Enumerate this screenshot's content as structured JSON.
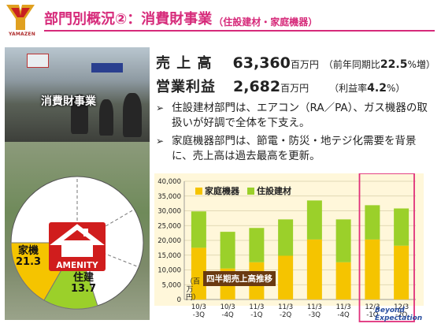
{
  "header": {
    "logo_text": "YAMAZEN",
    "title": "部門別概況②：消費財事業",
    "title_sub": "（住設建材・家庭機器）"
  },
  "photo": {
    "caption": "消費財事業"
  },
  "pie": {
    "center_label": "AMENITY",
    "segments": [
      {
        "label": "家機",
        "value": "21.3"
      },
      {
        "label": "住建",
        "value": "13.7"
      }
    ]
  },
  "kpi": {
    "sales_label": "売 上 高",
    "sales_value": "63,360",
    "sales_unit": "百万円",
    "sales_note_pre": "（前年同期比",
    "sales_note_value": "22.5",
    "sales_note_post": "%増）",
    "profit_label": "営業利益",
    "profit_value": "2,682",
    "profit_unit": "百万円",
    "profit_note_pre": "（利益率",
    "profit_note_value": "4.2",
    "profit_note_post": "%）"
  },
  "bullets": [
    "住設建材部門は、エアコン（RA／PA）、ガス機器の取扱いが好調で全体を下支え。",
    "家庭機器部門は、節電・防災・地テジ化需要を背景に、売上高は過去最高を更新。"
  ],
  "bullet_mark": "➢",
  "footer": {
    "beyond_line1": "Beyond",
    "beyond_line2": "Expectation"
  },
  "chart_data": {
    "type": "bar",
    "stacked": true,
    "categories": [
      "10/3\n-3Q",
      "10/3\n-4Q",
      "11/3\n-1Q",
      "11/3\n-2Q",
      "11/3\n-3Q",
      "11/3\n-4Q",
      "12/3\n-1Q",
      "12/3\n-2Q"
    ],
    "series": [
      {
        "name": "家庭機器",
        "color": "#f5c400",
        "values": [
          17500,
          10500,
          12600,
          14800,
          20300,
          12600,
          20300,
          18200
        ]
      },
      {
        "name": "住設建材",
        "color": "#9bd02a",
        "values": [
          12300,
          12400,
          11600,
          12300,
          13200,
          14500,
          11600,
          12600
        ]
      }
    ],
    "ylim": [
      0,
      40000
    ],
    "yticks": [
      "0",
      "5,000",
      "10,000",
      "15,000",
      "20,000",
      "25,000",
      "30,000",
      "35,000",
      "40,000"
    ],
    "ylabel": "（百万円）",
    "caption": "四半期売上高推移",
    "highlight": [
      "12/3\n-1Q",
      "12/3\n-2Q"
    ],
    "highlight_color": "#e0307a",
    "grid": true,
    "legend": "top-left"
  }
}
